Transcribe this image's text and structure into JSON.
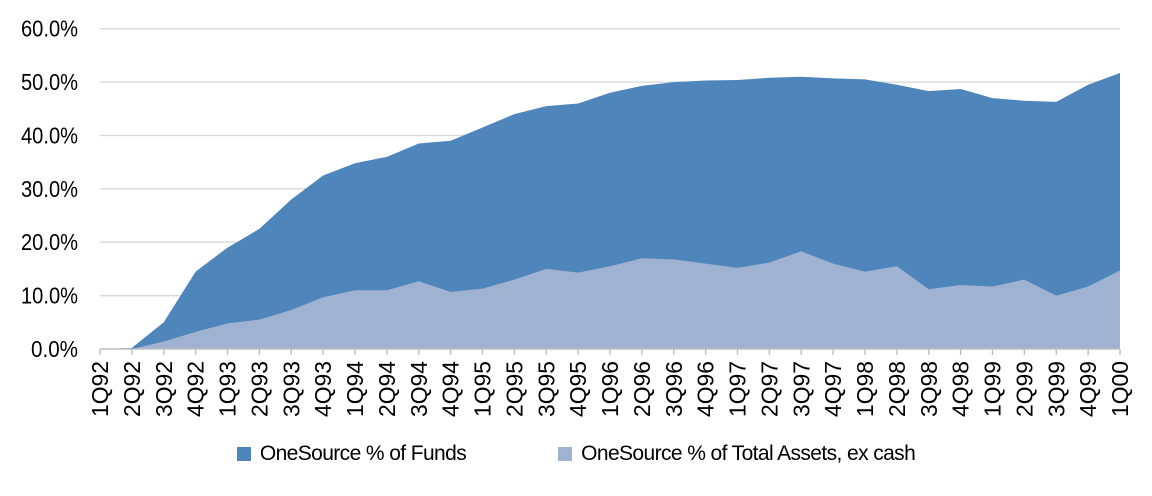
{
  "chart_data": {
    "type": "area",
    "title": "",
    "categories": [
      "1Q92",
      "2Q92",
      "3Q92",
      "4Q92",
      "1Q93",
      "2Q93",
      "3Q93",
      "4Q93",
      "1Q94",
      "2Q94",
      "3Q94",
      "4Q94",
      "1Q95",
      "2Q95",
      "3Q95",
      "4Q95",
      "1Q96",
      "2Q96",
      "3Q96",
      "4Q96",
      "1Q97",
      "2Q97",
      "3Q97",
      "4Q97",
      "1Q98",
      "2Q98",
      "3Q98",
      "4Q98",
      "1Q99",
      "2Q99",
      "3Q99",
      "4Q99",
      "1Q00"
    ],
    "series": [
      {
        "name": "OneSource % of Funds",
        "color": "#4E85BA",
        "values": [
          0,
          0.2,
          5.0,
          14.5,
          19.0,
          22.5,
          28.0,
          32.5,
          34.8,
          36.0,
          38.5,
          39.0,
          41.5,
          44.0,
          45.5,
          46.0,
          48.0,
          49.3,
          50.0,
          50.3,
          50.4,
          50.8,
          51.0,
          50.7,
          50.5,
          49.5,
          48.3,
          48.7,
          47.0,
          46.5,
          46.3,
          49.5,
          51.7
        ]
      },
      {
        "name": "OneSource % of Total Assets, ex cash",
        "color": "#9FB2D1",
        "values": [
          0,
          0,
          1.4,
          3.2,
          4.8,
          5.5,
          7.3,
          9.7,
          11.0,
          11.0,
          12.7,
          10.7,
          11.3,
          13.0,
          15.0,
          14.3,
          15.5,
          17.0,
          16.8,
          16.0,
          15.2,
          16.2,
          18.3,
          16.0,
          14.5,
          15.5,
          11.2,
          12.0,
          11.7,
          13.0,
          10.0,
          11.7,
          14.7
        ]
      }
    ],
    "xlabel": "",
    "ylabel": "",
    "ylim": [
      0,
      60
    ],
    "ytick_step": 10,
    "ytick_labels": [
      "0.0%",
      "10.0%",
      "20.0%",
      "30.0%",
      "40.0%",
      "50.0%",
      "60.0%"
    ],
    "grid": "horizontal",
    "gridline_color": "#D9D9D9",
    "axis_color": "#BFBFBF",
    "label_color": "#000000",
    "legend_position": "bottom"
  }
}
